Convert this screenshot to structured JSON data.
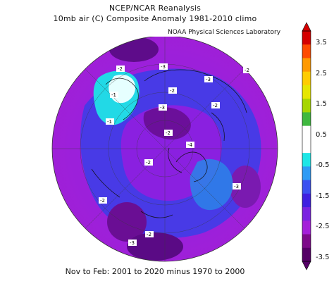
{
  "title_line1": "NCEP/NCAR Reanalysis",
  "title_line2": "10mb air (C) Composite Anomaly 1981-2010 climo",
  "credit": "NOAA Physical Sciences Laboratory",
  "footer": "Nov to Feb: 2001 to 2020 minus 1970 to 2000",
  "colorbar": {
    "labels": [
      "3.5",
      "2.5",
      "1.5",
      "0.5",
      "-0.5",
      "-1.5",
      "-2.5",
      "-3.5"
    ],
    "colors": [
      "#d40000",
      "#ff4a00",
      "#ff9900",
      "#ffcc00",
      "#e6e600",
      "#a6d600",
      "#3fb83f",
      "#ffffff",
      "#ffffff",
      "#1ee6e6",
      "#2e9bf5",
      "#3b50f0",
      "#3f1fe0",
      "#7a22e0",
      "#a41fd9",
      "#7d0a8a",
      "#550066"
    ]
  },
  "map_labels": [
    "-2",
    "-1",
    "-3",
    "-2",
    "-3",
    "-2",
    "-2",
    "-3",
    "-2",
    "-2",
    "-4",
    "-1",
    "-2",
    "-3",
    "-3",
    "-2"
  ],
  "icons": [
    "north-polar-projection-map"
  ]
}
